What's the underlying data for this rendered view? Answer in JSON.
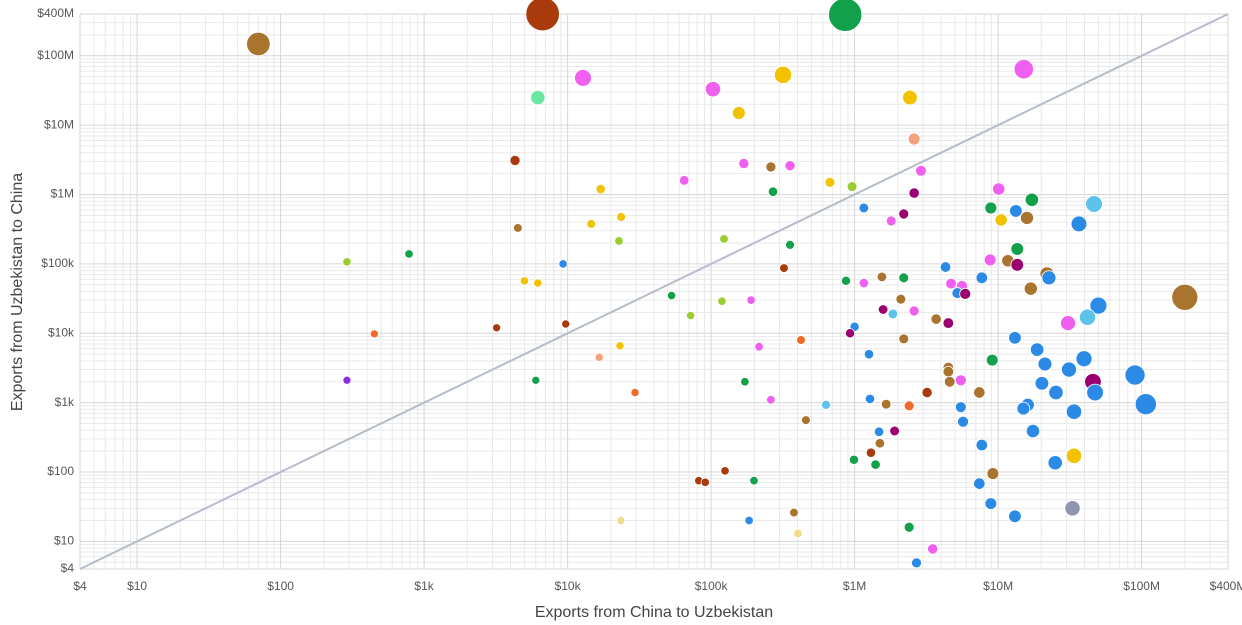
{
  "chart_data": {
    "type": "scatter",
    "x_label": "Exports from China to Uzbekistan",
    "y_label": "Exports from Uzbekistan to China",
    "xscale": "log",
    "yscale": "log",
    "grid": true,
    "xlim": [
      4,
      400000000
    ],
    "ylim": [
      4,
      400000000
    ],
    "xticks": [
      {
        "value": 4,
        "label": "$4"
      },
      {
        "value": 10,
        "label": "$10"
      },
      {
        "value": 100,
        "label": "$100"
      },
      {
        "value": 1000,
        "label": "$1k"
      },
      {
        "value": 10000,
        "label": "$10k"
      },
      {
        "value": 100000,
        "label": "$100k"
      },
      {
        "value": 1000000,
        "label": "$1M"
      },
      {
        "value": 10000000,
        "label": "$10M"
      },
      {
        "value": 100000000,
        "label": "$100M"
      },
      {
        "value": 400000000,
        "label": "$400M"
      }
    ],
    "yticks": [
      {
        "value": 4,
        "label": "$4"
      },
      {
        "value": 10,
        "label": "$10"
      },
      {
        "value": 100,
        "label": "$100"
      },
      {
        "value": 1000,
        "label": "$1k"
      },
      {
        "value": 10000,
        "label": "$10k"
      },
      {
        "value": 100000,
        "label": "$100k"
      },
      {
        "value": 1000000,
        "label": "$1M"
      },
      {
        "value": 10000000,
        "label": "$10M"
      },
      {
        "value": 100000000,
        "label": "$100M"
      },
      {
        "value": 400000000,
        "label": "$400M"
      }
    ],
    "x": [
      70,
      6700,
      860000,
      12800,
      6200,
      103000,
      317000,
      15100000,
      2430000,
      156000,
      2600000,
      4300,
      169000,
      261000,
      355000,
      2900000,
      65000,
      673000,
      960000,
      17000,
      270000,
      2600000,
      10100000,
      17200000,
      46600000,
      1160000,
      8900000,
      13300000,
      2200000,
      15900000,
      10500000,
      23600,
      14600,
      1800000,
      36600000,
      4500,
      123000,
      22800,
      355000,
      13600000,
      785,
      290,
      9300,
      8800000,
      11700000,
      13600000,
      4300000,
      322000,
      21900000,
      22600000,
      1550000,
      2200000,
      7700000,
      871000,
      1160000,
      4700000,
      5600000,
      5200000,
      5900000,
      5000,
      6200,
      16900000,
      53000,
      2100000,
      190000,
      119000,
      200000000,
      50000000,
      42000000,
      30700000,
      1580000,
      1850000,
      2600000,
      72000,
      3700000,
      4500000,
      9700,
      3200,
      1000000,
      930000,
      450,
      2200000,
      423000,
      13100000,
      23200,
      216000,
      18700000,
      1260000,
      39700000,
      16600,
      9100000,
      21200000,
      4500000,
      31200000,
      4500000,
      90000000,
      290,
      6000,
      172000,
      4600000,
      5500000,
      20200000,
      45800000,
      47400000,
      7400000,
      25300000,
      3200000,
      29500,
      1280000,
      261000,
      632000,
      1660000,
      2400000,
      16100000,
      15000000,
      33800000,
      107000000,
      5500000,
      5700000,
      458000,
      17500000,
      1480000,
      1900000,
      1500000,
      7700000,
      1300000,
      33800000,
      990000,
      25000000,
      1400000,
      125000,
      9200000,
      7400000,
      82000,
      91000,
      199000,
      8900000,
      33000000,
      378000,
      13100000,
      23500,
      184000,
      2400000,
      403000,
      3500000,
      2700000
    ],
    "values": [
      148000000,
      400000000,
      390000000,
      48000000,
      25000000,
      33000000,
      53000000,
      64000000,
      25000000,
      15000000,
      6300000,
      3100000,
      2800000,
      2500000,
      2600000,
      2200000,
      1600000,
      1500000,
      1300000,
      1200000,
      1100000,
      1050000,
      1200000,
      840000,
      730000,
      640000,
      640000,
      580000,
      525000,
      460000,
      430000,
      475000,
      377000,
      416000,
      377000,
      330000,
      229000,
      214000,
      188000,
      164000,
      139000,
      107000,
      100000,
      114000,
      111000,
      97000,
      90000,
      87000,
      72000,
      63000,
      65000,
      63000,
      63000,
      57000,
      53000,
      52000,
      48000,
      38000,
      37000,
      57000,
      53000,
      44000,
      35000,
      31000,
      30000,
      29000,
      33000,
      25000,
      17000,
      14000,
      22000,
      19000,
      21000,
      18000,
      16000,
      14000,
      13600,
      12000,
      12400,
      10000,
      9800,
      8300,
      8000,
      8600,
      6600,
      6400,
      5800,
      5000,
      4300,
      4500,
      4100,
      3600,
      3200,
      3000,
      2800,
      2500,
      2100,
      2100,
      2000,
      2000,
      2100,
      1900,
      2000,
      1400,
      1400,
      1400,
      1400,
      1400,
      1130,
      1100,
      930,
      950,
      900,
      930,
      820,
      740,
      950,
      860,
      530,
      560,
      390,
      380,
      390,
      260,
      245,
      190,
      171,
      150,
      136,
      128,
      104,
      95,
      68,
      75,
      71,
      75,
      35,
      30,
      26,
      23,
      20,
      20,
      16,
      13,
      7.8,
      4.9
    ],
    "colors": [
      "#a8742e",
      "#a83a0c",
      "#12a04a",
      "#f060f0",
      "#66e8a0",
      "#f060f0",
      "#f2c200",
      "#f060f0",
      "#f2c200",
      "#f2c200",
      "#f4a07a",
      "#a83a0c",
      "#f060f0",
      "#a8742e",
      "#f060f0",
      "#f060f0",
      "#f060f0",
      "#f2c200",
      "#9acd32",
      "#f2c200",
      "#12a04a",
      "#9b0070",
      "#f060f0",
      "#12a04a",
      "#5ec3ec",
      "#2b8ae6",
      "#12a04a",
      "#2b8ae6",
      "#9b0070",
      "#a8742e",
      "#f2c200",
      "#f2c200",
      "#f2c200",
      "#f060f0",
      "#2b8ae6",
      "#a8742e",
      "#9acd32",
      "#9acd32",
      "#12a04a",
      "#12a04a",
      "#12a04a",
      "#9acd32",
      "#2b8ae6",
      "#f060f0",
      "#a8742e",
      "#9b0070",
      "#2b8ae6",
      "#a83a0c",
      "#a8742e",
      "#2b8ae6",
      "#a8742e",
      "#12a04a",
      "#2b8ae6",
      "#12a04a",
      "#f060f0",
      "#f060f0",
      "#f060f0",
      "#2b8ae6",
      "#9b0070",
      "#f2c200",
      "#f2c200",
      "#a8742e",
      "#12a04a",
      "#a8742e",
      "#f060f0",
      "#9acd32",
      "#a8742e",
      "#2b8ae6",
      "#5ec3ec",
      "#f060f0",
      "#9b0070",
      "#5ec3ec",
      "#f060f0",
      "#9acd32",
      "#a8742e",
      "#9b0070",
      "#a83a0c",
      "#a83a0c",
      "#2b8ae6",
      "#9b0070",
      "#f06a2a",
      "#a8742e",
      "#f06a2a",
      "#2b8ae6",
      "#f2c200",
      "#f060f0",
      "#2b8ae6",
      "#2b8ae6",
      "#2b8ae6",
      "#f4a07a",
      "#12a04a",
      "#2b8ae6",
      "#a8742e",
      "#2b8ae6",
      "#a8742e",
      "#2b8ae6",
      "#8a2be2",
      "#12a04a",
      "#12a04a",
      "#a8742e",
      "#f060f0",
      "#2b8ae6",
      "#9b0070",
      "#2b8ae6",
      "#a8742e",
      "#2b8ae6",
      "#a83a0c",
      "#f06a2a",
      "#2b8ae6",
      "#f060f0",
      "#5ec3ec",
      "#a8742e",
      "#f06a2a",
      "#2b8ae6",
      "#2b8ae6",
      "#2b8ae6",
      "#2b8ae6",
      "#2b8ae6",
      "#2b8ae6",
      "#a8742e",
      "#2b8ae6",
      "#2b8ae6",
      "#9b0070",
      "#a8742e",
      "#2b8ae6",
      "#a83a0c",
      "#f2c200",
      "#12a04a",
      "#2b8ae6",
      "#12a04a",
      "#a83a0c",
      "#a8742e",
      "#2b8ae6",
      "#a83a0c",
      "#a83a0c",
      "#12a04a",
      "#2b8ae6",
      "#8e95b0",
      "#a8742e",
      "#2b8ae6",
      "#f2dc8a",
      "#2b8ae6",
      "#12a04a",
      "#f2dc8a",
      "#f060f0",
      "#2b8ae6"
    ]
  }
}
